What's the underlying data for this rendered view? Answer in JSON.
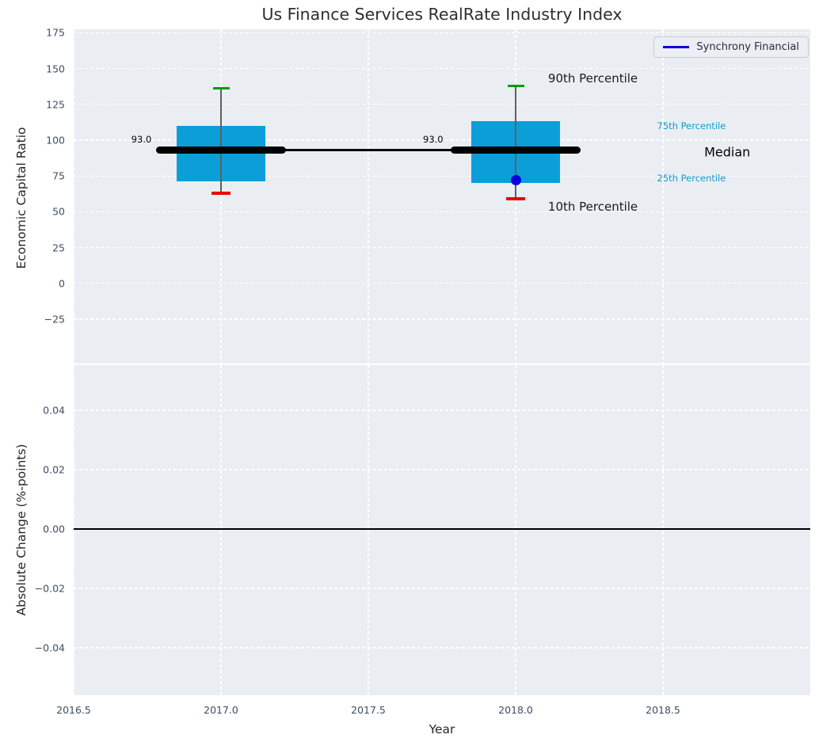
{
  "chart_data": {
    "type": "box",
    "title": "Us Finance Services RealRate Industry Index",
    "xlabel": "Year",
    "xlim": [
      2016.5,
      2019.0
    ],
    "x_ticks": {
      "values": [
        2016.5,
        2017.0,
        2017.5,
        2018.0,
        2018.5
      ],
      "labels": [
        "2016.5",
        "2017.0",
        "2017.5",
        "2018.0",
        "2018.5"
      ]
    },
    "legend": {
      "position": "upper right",
      "entries": [
        {
          "label": "Synchrony Financial",
          "color": "#0000dd"
        }
      ]
    },
    "top_panel": {
      "ylabel": "Economic Capital Ratio",
      "ylim": [
        -56,
        177.4
      ],
      "grid": true,
      "y_ticks": {
        "values": [
          175,
          150,
          125,
          100,
          75,
          50,
          25,
          0,
          -25
        ],
        "labels": [
          "175",
          "150",
          "125",
          "100",
          "75",
          "50",
          "25",
          "0",
          "−25"
        ]
      },
      "boxes": [
        {
          "x": 2017,
          "p10": 63,
          "p25": 71,
          "median": 93,
          "p75": 110,
          "p90": 136
        },
        {
          "x": 2018,
          "p10": 59,
          "p25": 70,
          "median": 93,
          "p75": 113,
          "p90": 138
        }
      ],
      "median_line": {
        "x": [
          2017,
          2018
        ],
        "y": [
          93,
          93
        ]
      },
      "company_series": {
        "name": "Synchrony Financial",
        "points": [
          {
            "x": 2018,
            "y": 72
          }
        ]
      },
      "annotations": [
        {
          "text": "93.0",
          "x": 2016.73,
          "y": 100.5,
          "size": 11.5,
          "color": "#000000",
          "align": "center"
        },
        {
          "text": "93.0",
          "x": 2017.72,
          "y": 100.5,
          "size": 11.5,
          "color": "#000000",
          "align": "center"
        },
        {
          "text": "90th Percentile",
          "x": 2018.11,
          "y": 143,
          "size": 15,
          "color": "#1a1a1a",
          "align": "left"
        },
        {
          "text": "10th Percentile",
          "x": 2018.11,
          "y": 53.5,
          "size": 15,
          "color": "#1a1a1a",
          "align": "left"
        },
        {
          "text": "75th Percentile",
          "x": 2018.48,
          "y": 110,
          "size": 11.5,
          "color": "#109bd2",
          "align": "left"
        },
        {
          "text": "Median",
          "x": 2018.64,
          "y": 91.5,
          "size": 16,
          "color": "#000000",
          "align": "left"
        },
        {
          "text": "25th Percentile",
          "x": 2018.48,
          "y": 73.5,
          "size": 11.5,
          "color": "#109bd2",
          "align": "left"
        }
      ]
    },
    "bottom_panel": {
      "ylabel": "Absolute Change (%-points)",
      "ylim": [
        -0.056,
        0.0552
      ],
      "grid": true,
      "y_ticks": {
        "values": [
          0.04,
          0.02,
          0.0,
          -0.02,
          -0.04
        ],
        "labels": [
          "0.04",
          "0.02",
          "0.00",
          "−0.02",
          "−0.04"
        ]
      },
      "zero_line": 0.0
    },
    "colors": {
      "box_fill": "#0c9ed9",
      "p90_cap": "#009c00",
      "p10_cap": "#ee0000",
      "median": "#000000",
      "whisker": "#606060",
      "company": "#0000dd",
      "percentile_label": "#109bd2",
      "panel_bg": "#eaeef2",
      "grid": "#ffffff",
      "tick": "#3d4e63",
      "zero_line": "#000000"
    }
  }
}
